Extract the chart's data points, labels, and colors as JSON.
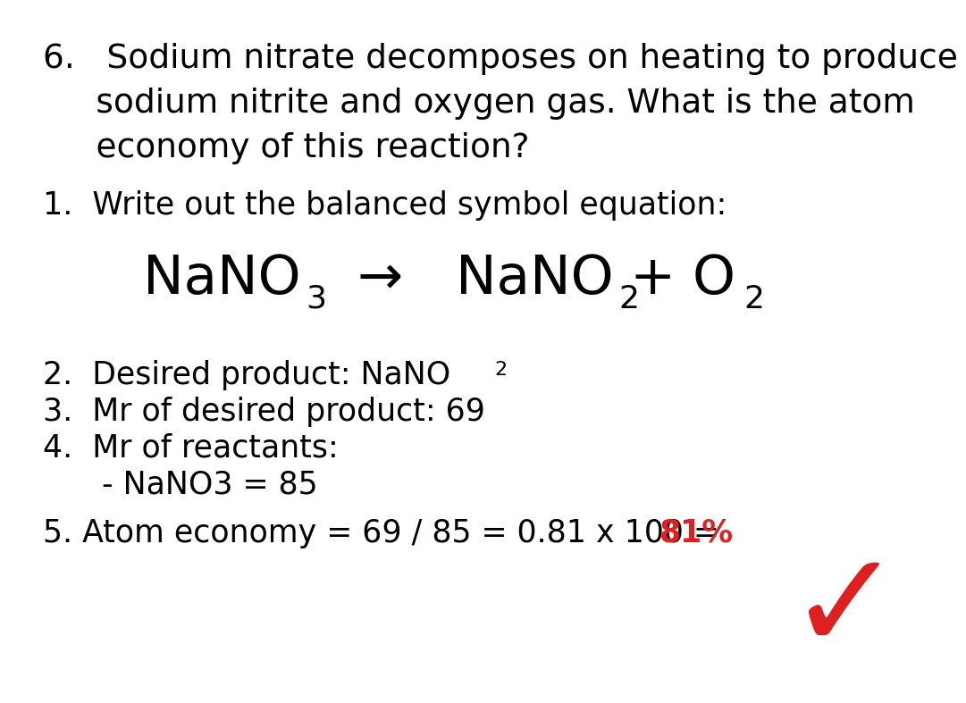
{
  "bg_color": "#ffffff",
  "text_color": "#000000",
  "red_color": "#e02020",
  "title_line1": "6.   Sodium nitrate decomposes on heating to produce",
  "title_line2": "     sodium nitrite and oxygen gas. What is the atom",
  "title_line3": "     economy of this reaction?",
  "step1": "1.  Write out the balanced symbol equation:",
  "step3": "3.  Mr of desired product: 69",
  "step4a": "4.  Mr of reactants:",
  "step4b": "      - NaNO3 = 85",
  "step5_prefix": "5. Atom economy = 69 / 85 = 0.81 x 100 = ",
  "step5_highlight": "81%",
  "font_family": "DejaVu Sans",
  "fs_title": 27,
  "fs_eq": 44,
  "fs_eq_sub": 26,
  "fs_body": 25,
  "fs_body_sub": 16
}
